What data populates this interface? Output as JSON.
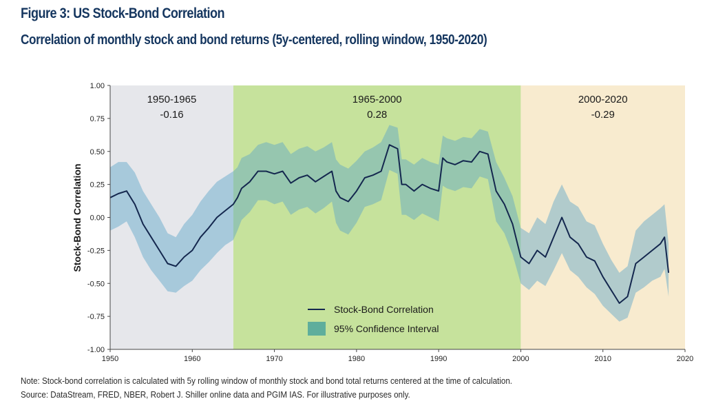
{
  "header": {
    "title": "Figure 3: US Stock-Bond Correlation",
    "subtitle": "Correlation of monthly stock and bond returns (5y-centered, rolling window, 1950-2020)"
  },
  "notes": {
    "note": "Note: Stock-bond correlation is calculated with 5y rolling window of monthly stock and bond total returns centered at the time of calculation.",
    "source": "Source: DataStream, FRED, NBER, Robert J. Shiller online data and PGIM IAS. For illustrative purposes only."
  },
  "colors": {
    "line": "#14274e",
    "band": "#5ba4c8",
    "era1_bg": "#e6e7eb",
    "era2_bg": "#c6e29c",
    "era3_bg": "#f8ebcf",
    "title": "#15365f"
  },
  "chart_data": {
    "type": "line",
    "ylabel": "Stock-Bond Correlation",
    "xlim": [
      1950,
      2020
    ],
    "ylim": [
      -1.0,
      1.0
    ],
    "xticks": [
      "1950",
      "1960",
      "1970",
      "1980",
      "1990",
      "2000",
      "2010",
      "2020"
    ],
    "yticks": [
      "1.00",
      "0.75",
      "0.50",
      "0.25",
      "0.00",
      "-0.25",
      "-0.50",
      "-0.75",
      "-1.00"
    ],
    "periods": [
      {
        "start": 1950,
        "end": 1965,
        "label": "1950-1965",
        "value": "-0.16"
      },
      {
        "start": 1965,
        "end": 2000,
        "label": "1965-2000",
        "value": "0.28"
      },
      {
        "start": 2000,
        "end": 2020,
        "label": "2000-2020",
        "value": "-0.29"
      }
    ],
    "legend": {
      "placement": "bottom-center",
      "entries": [
        "Stock-Bond Correlation",
        "95% Confidence Interval"
      ]
    },
    "series": [
      {
        "name": "Stock-Bond Correlation",
        "x": [
          1950,
          1951,
          1952,
          1953,
          1954,
          1955,
          1956,
          1957,
          1958,
          1959,
          1960,
          1961,
          1962,
          1963,
          1964,
          1965,
          1965.5,
          1966,
          1967,
          1968,
          1969,
          1970,
          1971,
          1972,
          1973,
          1974,
          1975,
          1976,
          1977,
          1977.5,
          1978,
          1979,
          1980,
          1981,
          1982,
          1983,
          1984,
          1985,
          1985.5,
          1986,
          1987,
          1988,
          1989,
          1990,
          1990.5,
          1991,
          1992,
          1993,
          1994,
          1995,
          1996,
          1997,
          1998,
          1999,
          2000,
          2001,
          2002,
          2003,
          2004,
          2005,
          2006,
          2007,
          2008,
          2009,
          2010,
          2011,
          2012,
          2013,
          2014,
          2015,
          2016,
          2017,
          2017.5,
          2018
        ],
        "values": [
          0.15,
          0.18,
          0.2,
          0.1,
          -0.05,
          -0.15,
          -0.25,
          -0.35,
          -0.37,
          -0.3,
          -0.25,
          -0.15,
          -0.08,
          0.0,
          0.05,
          0.1,
          0.15,
          0.22,
          0.27,
          0.35,
          0.35,
          0.33,
          0.35,
          0.26,
          0.3,
          0.32,
          0.27,
          0.31,
          0.35,
          0.2,
          0.15,
          0.12,
          0.2,
          0.3,
          0.32,
          0.35,
          0.55,
          0.52,
          0.25,
          0.25,
          0.2,
          0.25,
          0.22,
          0.2,
          0.45,
          0.42,
          0.4,
          0.43,
          0.42,
          0.5,
          0.48,
          0.2,
          0.1,
          -0.05,
          -0.3,
          -0.35,
          -0.25,
          -0.3,
          -0.15,
          0.0,
          -0.15,
          -0.2,
          -0.3,
          -0.33,
          -0.45,
          -0.55,
          -0.65,
          -0.6,
          -0.35,
          -0.3,
          -0.25,
          -0.2,
          -0.15,
          -0.42
        ]
      },
      {
        "name": "95% Confidence Interval",
        "upper": [
          0.38,
          0.42,
          0.42,
          0.34,
          0.2,
          0.1,
          0.0,
          -0.12,
          -0.15,
          -0.05,
          0.02,
          0.12,
          0.2,
          0.27,
          0.31,
          0.35,
          0.38,
          0.45,
          0.48,
          0.55,
          0.57,
          0.55,
          0.57,
          0.48,
          0.52,
          0.54,
          0.5,
          0.53,
          0.57,
          0.44,
          0.4,
          0.37,
          0.43,
          0.5,
          0.53,
          0.57,
          0.7,
          0.68,
          0.44,
          0.44,
          0.4,
          0.45,
          0.42,
          0.4,
          0.62,
          0.6,
          0.58,
          0.61,
          0.6,
          0.67,
          0.65,
          0.42,
          0.3,
          0.16,
          -0.08,
          -0.12,
          0.0,
          -0.05,
          0.12,
          0.25,
          0.12,
          0.08,
          -0.03,
          -0.06,
          -0.2,
          -0.32,
          -0.42,
          -0.37,
          -0.1,
          -0.03,
          0.02,
          0.07,
          0.1,
          -0.2
        ],
        "lower": [
          -0.1,
          -0.07,
          -0.03,
          -0.15,
          -0.3,
          -0.4,
          -0.48,
          -0.56,
          -0.57,
          -0.52,
          -0.48,
          -0.4,
          -0.34,
          -0.27,
          -0.21,
          -0.17,
          -0.1,
          -0.02,
          0.04,
          0.13,
          0.13,
          0.1,
          0.12,
          0.02,
          0.06,
          0.08,
          0.03,
          0.07,
          0.12,
          -0.04,
          -0.1,
          -0.13,
          -0.04,
          0.08,
          0.1,
          0.13,
          0.36,
          0.33,
          0.02,
          0.02,
          -0.02,
          0.03,
          0.0,
          -0.03,
          0.24,
          0.22,
          0.2,
          0.23,
          0.22,
          0.31,
          0.29,
          -0.03,
          -0.12,
          -0.28,
          -0.5,
          -0.55,
          -0.48,
          -0.52,
          -0.4,
          -0.27,
          -0.4,
          -0.45,
          -0.53,
          -0.58,
          -0.67,
          -0.73,
          -0.79,
          -0.76,
          -0.57,
          -0.53,
          -0.48,
          -0.45,
          -0.39,
          -0.6
        ]
      }
    ]
  }
}
